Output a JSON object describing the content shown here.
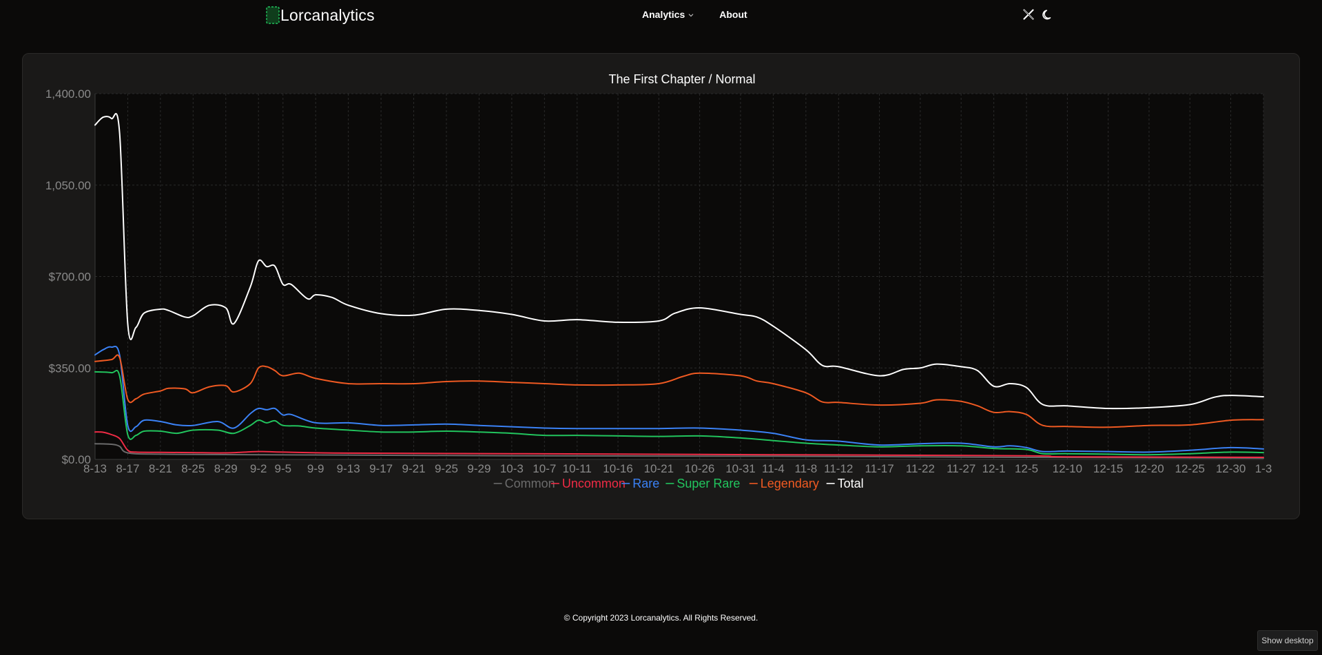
{
  "nav": {
    "brand": "Lorcanalytics",
    "menu": [
      {
        "label": "Analytics",
        "has_dropdown": true
      },
      {
        "label": "About",
        "has_dropdown": false
      }
    ],
    "icons": [
      "x-twitter-icon",
      "moon-icon"
    ],
    "accent": "#22c55e"
  },
  "chart_data": {
    "type": "line",
    "title": "The First Chapter / Normal",
    "xlabel": "",
    "ylabel": "",
    "ylim": [
      0,
      1400
    ],
    "y_ticks": [
      0,
      350,
      700,
      1050,
      1400
    ],
    "y_tick_labels": [
      "$0.00",
      "$350.00",
      "$700.00",
      "1,050.00",
      "1,400.00"
    ],
    "x_start": "2023-08-13",
    "x_end": "2024-01-03",
    "x_tick_labels": [
      "8-13",
      "8-17",
      "8-21",
      "8-25",
      "8-29",
      "9-2",
      "9-5",
      "9-9",
      "9-13",
      "9-17",
      "9-21",
      "9-25",
      "9-29",
      "10-3",
      "10-7",
      "10-11",
      "10-16",
      "10-21",
      "10-26",
      "10-31",
      "11-4",
      "11-8",
      "11-12",
      "11-17",
      "11-22",
      "11-27",
      "12-1",
      "12-5",
      "12-10",
      "12-15",
      "12-20",
      "12-25",
      "12-30",
      "1-3"
    ],
    "x_tick_dates": [
      "2023-08-13",
      "2023-08-17",
      "2023-08-21",
      "2023-08-25",
      "2023-08-29",
      "2023-09-02",
      "2023-09-05",
      "2023-09-09",
      "2023-09-13",
      "2023-09-17",
      "2023-09-21",
      "2023-09-25",
      "2023-09-29",
      "2023-10-03",
      "2023-10-07",
      "2023-10-11",
      "2023-10-16",
      "2023-10-21",
      "2023-10-26",
      "2023-10-31",
      "2023-11-04",
      "2023-11-08",
      "2023-11-12",
      "2023-11-17",
      "2023-11-22",
      "2023-11-27",
      "2023-12-01",
      "2023-12-05",
      "2023-12-10",
      "2023-12-15",
      "2023-12-20",
      "2023-12-25",
      "2023-12-30",
      "2024-01-03"
    ],
    "grid": true,
    "legend_position": "bottom",
    "series": [
      {
        "name": "Common",
        "color": "#6b6b6b",
        "points": [
          [
            "2023-08-13",
            60
          ],
          [
            "2023-08-15",
            58
          ],
          [
            "2023-08-16",
            50
          ],
          [
            "2023-08-17",
            25
          ],
          [
            "2023-08-21",
            20
          ],
          [
            "2023-09-02",
            18
          ],
          [
            "2023-10-03",
            14
          ],
          [
            "2023-11-04",
            12
          ],
          [
            "2023-12-05",
            8
          ],
          [
            "2024-01-03",
            5
          ]
        ]
      },
      {
        "name": "Uncommon",
        "color": "#ef2b45",
        "points": [
          [
            "2023-08-13",
            105
          ],
          [
            "2023-08-14",
            104
          ],
          [
            "2023-08-15",
            95
          ],
          [
            "2023-08-16",
            80
          ],
          [
            "2023-08-17",
            35
          ],
          [
            "2023-08-18",
            28
          ],
          [
            "2023-08-21",
            27
          ],
          [
            "2023-08-25",
            26
          ],
          [
            "2023-08-29",
            25
          ],
          [
            "2023-09-02",
            30
          ],
          [
            "2023-09-05",
            28
          ],
          [
            "2023-09-13",
            24
          ],
          [
            "2023-10-03",
            22
          ],
          [
            "2023-11-04",
            18
          ],
          [
            "2023-12-05",
            14
          ],
          [
            "2023-12-10",
            10
          ],
          [
            "2024-01-03",
            8
          ]
        ]
      },
      {
        "name": "Rare",
        "color": "#3b82f6",
        "points": [
          [
            "2023-08-13",
            400
          ],
          [
            "2023-08-14",
            420
          ],
          [
            "2023-08-15",
            430
          ],
          [
            "2023-08-16",
            400
          ],
          [
            "2023-08-17",
            130
          ],
          [
            "2023-08-18",
            125
          ],
          [
            "2023-08-19",
            150
          ],
          [
            "2023-08-21",
            145
          ],
          [
            "2023-08-23",
            132
          ],
          [
            "2023-08-25",
            130
          ],
          [
            "2023-08-28",
            145
          ],
          [
            "2023-08-30",
            120
          ],
          [
            "2023-09-01",
            175
          ],
          [
            "2023-09-02",
            195
          ],
          [
            "2023-09-03",
            190
          ],
          [
            "2023-09-04",
            195
          ],
          [
            "2023-09-05",
            170
          ],
          [
            "2023-09-06",
            172
          ],
          [
            "2023-09-09",
            140
          ],
          [
            "2023-09-13",
            140
          ],
          [
            "2023-09-17",
            130
          ],
          [
            "2023-09-21",
            132
          ],
          [
            "2023-09-25",
            135
          ],
          [
            "2023-09-29",
            130
          ],
          [
            "2023-10-03",
            125
          ],
          [
            "2023-10-07",
            120
          ],
          [
            "2023-10-11",
            118
          ],
          [
            "2023-10-16",
            118
          ],
          [
            "2023-10-21",
            118
          ],
          [
            "2023-10-26",
            120
          ],
          [
            "2023-10-31",
            112
          ],
          [
            "2023-11-04",
            100
          ],
          [
            "2023-11-08",
            75
          ],
          [
            "2023-11-12",
            70
          ],
          [
            "2023-11-17",
            55
          ],
          [
            "2023-11-22",
            60
          ],
          [
            "2023-11-27",
            62
          ],
          [
            "2023-12-01",
            48
          ],
          [
            "2023-12-03",
            52
          ],
          [
            "2023-12-05",
            45
          ],
          [
            "2023-12-07",
            30
          ],
          [
            "2023-12-10",
            32
          ],
          [
            "2023-12-15",
            30
          ],
          [
            "2023-12-20",
            28
          ],
          [
            "2023-12-25",
            35
          ],
          [
            "2023-12-30",
            45
          ],
          [
            "2024-01-03",
            40
          ]
        ]
      },
      {
        "name": "Super Rare",
        "color": "#22c55e",
        "points": [
          [
            "2023-08-13",
            335
          ],
          [
            "2023-08-15",
            332
          ],
          [
            "2023-08-16",
            320
          ],
          [
            "2023-08-17",
            95
          ],
          [
            "2023-08-18",
            92
          ],
          [
            "2023-08-19",
            108
          ],
          [
            "2023-08-21",
            108
          ],
          [
            "2023-08-23",
            100
          ],
          [
            "2023-08-25",
            112
          ],
          [
            "2023-08-28",
            112
          ],
          [
            "2023-08-30",
            100
          ],
          [
            "2023-09-01",
            130
          ],
          [
            "2023-09-02",
            150
          ],
          [
            "2023-09-03",
            140
          ],
          [
            "2023-09-04",
            148
          ],
          [
            "2023-09-05",
            130
          ],
          [
            "2023-09-07",
            128
          ],
          [
            "2023-09-09",
            120
          ],
          [
            "2023-09-13",
            112
          ],
          [
            "2023-09-17",
            105
          ],
          [
            "2023-09-21",
            105
          ],
          [
            "2023-09-25",
            108
          ],
          [
            "2023-09-29",
            105
          ],
          [
            "2023-10-03",
            100
          ],
          [
            "2023-10-07",
            92
          ],
          [
            "2023-10-11",
            92
          ],
          [
            "2023-10-16",
            90
          ],
          [
            "2023-10-21",
            88
          ],
          [
            "2023-10-26",
            90
          ],
          [
            "2023-10-31",
            82
          ],
          [
            "2023-11-04",
            72
          ],
          [
            "2023-11-08",
            62
          ],
          [
            "2023-11-12",
            55
          ],
          [
            "2023-11-17",
            48
          ],
          [
            "2023-11-22",
            52
          ],
          [
            "2023-11-27",
            52
          ],
          [
            "2023-12-01",
            42
          ],
          [
            "2023-12-05",
            38
          ],
          [
            "2023-12-07",
            22
          ],
          [
            "2023-12-10",
            22
          ],
          [
            "2023-12-15",
            20
          ],
          [
            "2023-12-20",
            18
          ],
          [
            "2023-12-25",
            22
          ],
          [
            "2023-12-30",
            28
          ],
          [
            "2024-01-03",
            26
          ]
        ]
      },
      {
        "name": "Legendary",
        "color": "#f05a22",
        "points": [
          [
            "2023-08-13",
            375
          ],
          [
            "2023-08-15",
            382
          ],
          [
            "2023-08-16",
            390
          ],
          [
            "2023-08-17",
            230
          ],
          [
            "2023-08-18",
            232
          ],
          [
            "2023-08-19",
            250
          ],
          [
            "2023-08-21",
            262
          ],
          [
            "2023-08-22",
            272
          ],
          [
            "2023-08-24",
            270
          ],
          [
            "2023-08-25",
            255
          ],
          [
            "2023-08-27",
            278
          ],
          [
            "2023-08-29",
            282
          ],
          [
            "2023-08-30",
            258
          ],
          [
            "2023-09-01",
            290
          ],
          [
            "2023-09-02",
            350
          ],
          [
            "2023-09-03",
            355
          ],
          [
            "2023-09-04",
            340
          ],
          [
            "2023-09-05",
            320
          ],
          [
            "2023-09-07",
            330
          ],
          [
            "2023-09-09",
            310
          ],
          [
            "2023-09-13",
            290
          ],
          [
            "2023-09-17",
            290
          ],
          [
            "2023-09-21",
            290
          ],
          [
            "2023-09-25",
            298
          ],
          [
            "2023-09-29",
            300
          ],
          [
            "2023-10-03",
            295
          ],
          [
            "2023-10-07",
            290
          ],
          [
            "2023-10-11",
            285
          ],
          [
            "2023-10-16",
            285
          ],
          [
            "2023-10-21",
            290
          ],
          [
            "2023-10-24",
            318
          ],
          [
            "2023-10-26",
            330
          ],
          [
            "2023-10-31",
            320
          ],
          [
            "2023-11-02",
            300
          ],
          [
            "2023-11-04",
            290
          ],
          [
            "2023-11-08",
            255
          ],
          [
            "2023-11-10",
            220
          ],
          [
            "2023-11-12",
            218
          ],
          [
            "2023-11-17",
            208
          ],
          [
            "2023-11-22",
            215
          ],
          [
            "2023-11-24",
            228
          ],
          [
            "2023-11-27",
            222
          ],
          [
            "2023-11-29",
            205
          ],
          [
            "2023-12-01",
            180
          ],
          [
            "2023-12-03",
            183
          ],
          [
            "2023-12-05",
            172
          ],
          [
            "2023-12-07",
            130
          ],
          [
            "2023-12-10",
            126
          ],
          [
            "2023-12-15",
            123
          ],
          [
            "2023-12-20",
            130
          ],
          [
            "2023-12-25",
            132
          ],
          [
            "2023-12-30",
            150
          ],
          [
            "2024-01-03",
            152
          ]
        ]
      },
      {
        "name": "Total",
        "color": "#ffffff",
        "points": [
          [
            "2023-08-13",
            1280
          ],
          [
            "2023-08-14",
            1310
          ],
          [
            "2023-08-15",
            1305
          ],
          [
            "2023-08-16",
            1250
          ],
          [
            "2023-08-17",
            520
          ],
          [
            "2023-08-18",
            505
          ],
          [
            "2023-08-19",
            560
          ],
          [
            "2023-08-21",
            575
          ],
          [
            "2023-08-22",
            570
          ],
          [
            "2023-08-24",
            545
          ],
          [
            "2023-08-25",
            550
          ],
          [
            "2023-08-27",
            590
          ],
          [
            "2023-08-29",
            580
          ],
          [
            "2023-08-30",
            520
          ],
          [
            "2023-09-01",
            660
          ],
          [
            "2023-09-02",
            760
          ],
          [
            "2023-09-03",
            738
          ],
          [
            "2023-09-04",
            740
          ],
          [
            "2023-09-05",
            670
          ],
          [
            "2023-09-06",
            670
          ],
          [
            "2023-09-08",
            615
          ],
          [
            "2023-09-09",
            630
          ],
          [
            "2023-09-11",
            620
          ],
          [
            "2023-09-13",
            590
          ],
          [
            "2023-09-17",
            558
          ],
          [
            "2023-09-21",
            552
          ],
          [
            "2023-09-25",
            575
          ],
          [
            "2023-09-29",
            570
          ],
          [
            "2023-10-03",
            555
          ],
          [
            "2023-10-07",
            530
          ],
          [
            "2023-10-11",
            535
          ],
          [
            "2023-10-16",
            525
          ],
          [
            "2023-10-21",
            530
          ],
          [
            "2023-10-23",
            560
          ],
          [
            "2023-10-26",
            580
          ],
          [
            "2023-10-31",
            555
          ],
          [
            "2023-11-02",
            545
          ],
          [
            "2023-11-04",
            510
          ],
          [
            "2023-11-08",
            420
          ],
          [
            "2023-11-10",
            360
          ],
          [
            "2023-11-12",
            355
          ],
          [
            "2023-11-17",
            320
          ],
          [
            "2023-11-20",
            345
          ],
          [
            "2023-11-22",
            350
          ],
          [
            "2023-11-24",
            365
          ],
          [
            "2023-11-27",
            355
          ],
          [
            "2023-11-29",
            340
          ],
          [
            "2023-12-01",
            280
          ],
          [
            "2023-12-03",
            290
          ],
          [
            "2023-12-05",
            275
          ],
          [
            "2023-12-07",
            210
          ],
          [
            "2023-12-10",
            205
          ],
          [
            "2023-12-15",
            195
          ],
          [
            "2023-12-20",
            198
          ],
          [
            "2023-12-25",
            210
          ],
          [
            "2023-12-28",
            238
          ],
          [
            "2023-12-30",
            245
          ],
          [
            "2024-01-03",
            240
          ]
        ]
      }
    ]
  },
  "footer": {
    "copyright": "© Copyright 2023 Lorcanalytics. All Rights Reserved."
  },
  "show_desktop": {
    "label": "Show desktop"
  }
}
